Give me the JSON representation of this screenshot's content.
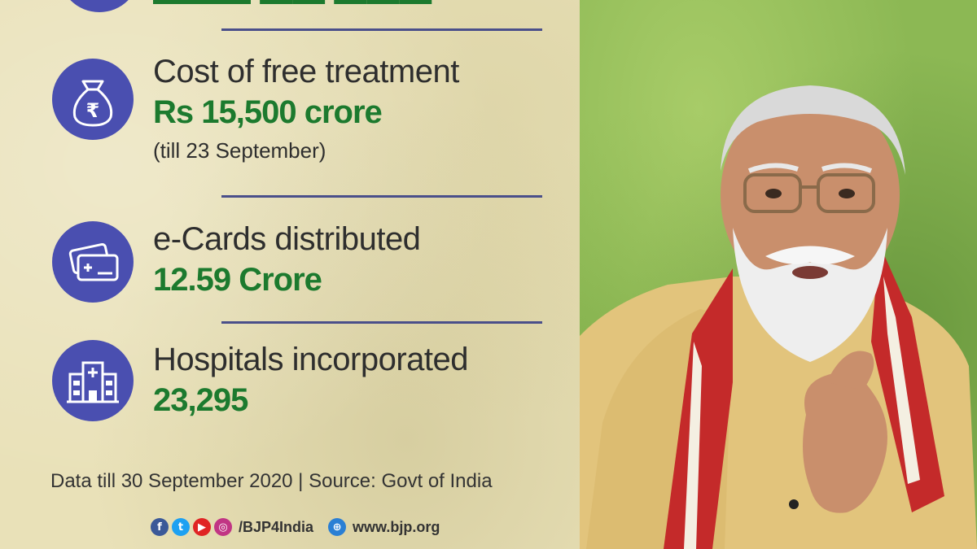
{
  "stats": [
    {
      "label": "Cost of free treatment",
      "value": "Rs 15,500 crore",
      "note": "(till 23 September)",
      "icon": "money-bag-rupee-icon"
    },
    {
      "label": "e-Cards distributed",
      "value": "12.59 Crore",
      "icon": "cards-icon"
    },
    {
      "label": "Hospitals incorporated",
      "value": "23,295",
      "icon": "hospital-icon"
    }
  ],
  "footer": {
    "source_note": "Data till 30 September 2020 | Source: Govt of India",
    "handle": "/BJP4India",
    "website": "www.bjp.org"
  },
  "colors": {
    "accent_circle": "#4a4fb0",
    "value_green": "#1c7a2e",
    "divider": "#4a4f8a",
    "panel": "#e9e1b8",
    "background_green": "#8cb854"
  }
}
